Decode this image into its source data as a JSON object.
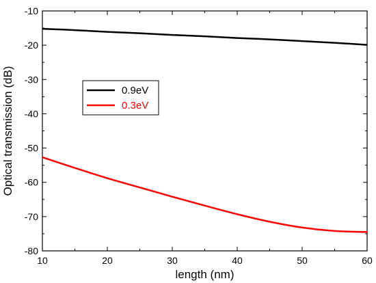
{
  "chart_data": {
    "type": "line",
    "title": "",
    "xlabel": "length (nm)",
    "ylabel": "Optical transmission (dB)",
    "xlim": [
      10,
      60
    ],
    "ylim": [
      -80,
      -10
    ],
    "xticks": [
      10,
      20,
      30,
      40,
      50,
      60
    ],
    "yticks": [
      -10,
      -20,
      -30,
      -40,
      -50,
      -60,
      -70,
      -80
    ],
    "grid": false,
    "legend_position": "upper-left-inside",
    "series": [
      {
        "name": "0.9eV",
        "color": "#000000",
        "x": [
          10,
          15,
          20,
          25,
          30,
          35,
          40,
          45,
          50,
          55,
          60
        ],
        "y": [
          -15.2,
          -15.6,
          -16.1,
          -16.5,
          -17.0,
          -17.4,
          -17.9,
          -18.3,
          -18.8,
          -19.3,
          -19.9
        ]
      },
      {
        "name": "0.3eV",
        "color": "#ff0000",
        "x": [
          10,
          15,
          20,
          25,
          30,
          35,
          40,
          45,
          50,
          55,
          60
        ],
        "y": [
          -52.7,
          -55.8,
          -58.8,
          -61.5,
          -64.2,
          -66.8,
          -69.3,
          -71.5,
          -73.2,
          -74.2,
          -74.5
        ]
      }
    ]
  }
}
